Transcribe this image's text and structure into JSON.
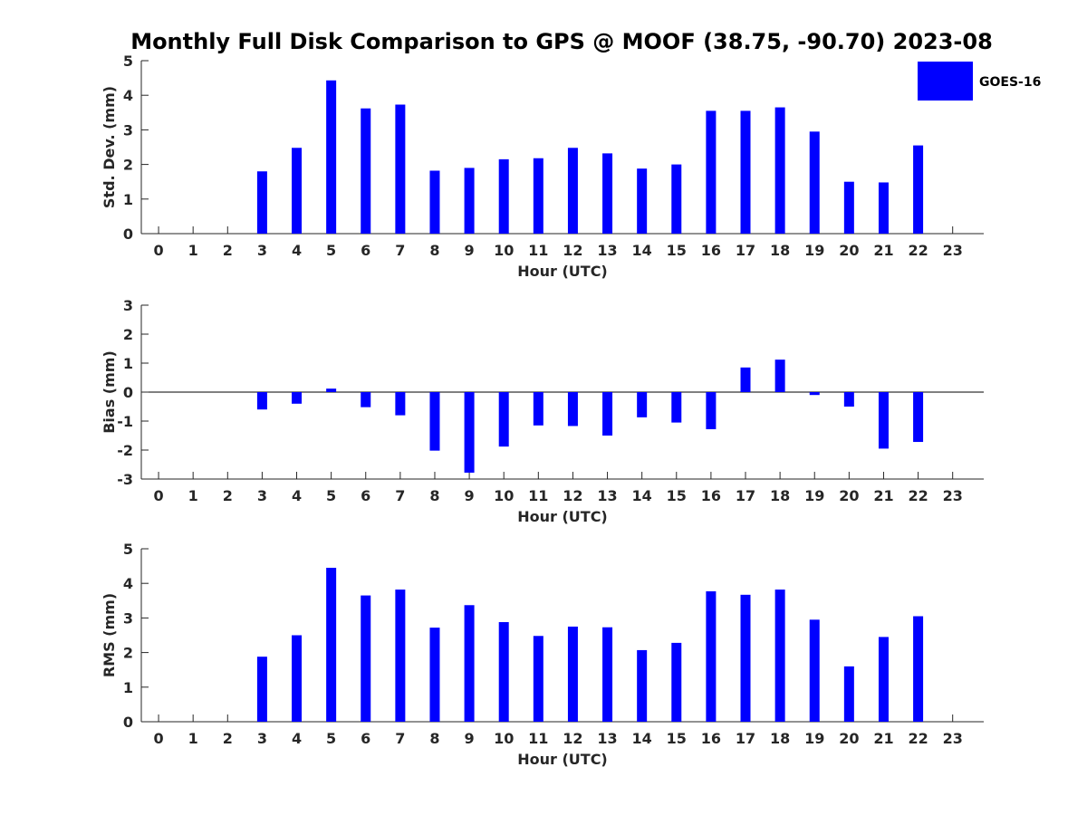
{
  "title": "Monthly Full Disk Comparison to GPS @ MOOF (38.75, -90.70) 2023-08",
  "legend": {
    "label": "GOES-16",
    "color": "#0000ff",
    "placement": "top-right"
  },
  "colors": {
    "bar": "#0000ff",
    "axis": "#262626"
  },
  "chart_data": [
    {
      "type": "bar",
      "x": [
        0,
        1,
        2,
        3,
        4,
        5,
        6,
        7,
        8,
        9,
        10,
        11,
        12,
        13,
        14,
        15,
        16,
        17,
        18,
        19,
        20,
        21,
        22,
        23
      ],
      "xlabel": "Hour (UTC)",
      "ylabel": "Std. Dev. (mm)",
      "ylim": [
        0,
        5
      ],
      "yticks": [
        0,
        1,
        2,
        3,
        4,
        5
      ],
      "grid": false,
      "series": [
        {
          "name": "GOES-16",
          "values": [
            null,
            null,
            null,
            1.8,
            2.48,
            4.43,
            3.62,
            3.73,
            1.82,
            1.9,
            2.15,
            2.18,
            2.48,
            2.32,
            1.88,
            2.0,
            3.55,
            3.55,
            3.65,
            2.95,
            1.5,
            1.48,
            2.55,
            null
          ]
        }
      ]
    },
    {
      "type": "bar",
      "x": [
        0,
        1,
        2,
        3,
        4,
        5,
        6,
        7,
        8,
        9,
        10,
        11,
        12,
        13,
        14,
        15,
        16,
        17,
        18,
        19,
        20,
        21,
        22,
        23
      ],
      "xlabel": "Hour (UTC)",
      "ylabel": "Bias (mm)",
      "ylim": [
        -3,
        3
      ],
      "yticks": [
        -3,
        -2,
        -1,
        0,
        1,
        2,
        3
      ],
      "grid": false,
      "series": [
        {
          "name": "GOES-16",
          "values": [
            null,
            null,
            null,
            -0.6,
            -0.4,
            0.12,
            -0.52,
            -0.8,
            -2.02,
            -2.78,
            -1.88,
            -1.15,
            -1.17,
            -1.5,
            -0.87,
            -1.05,
            -1.28,
            0.85,
            1.12,
            -0.1,
            -0.5,
            -1.95,
            -1.72,
            null
          ]
        }
      ]
    },
    {
      "type": "bar",
      "x": [
        0,
        1,
        2,
        3,
        4,
        5,
        6,
        7,
        8,
        9,
        10,
        11,
        12,
        13,
        14,
        15,
        16,
        17,
        18,
        19,
        20,
        21,
        22,
        23
      ],
      "xlabel": "Hour (UTC)",
      "ylabel": "RMS (mm)",
      "ylim": [
        0,
        5
      ],
      "yticks": [
        0,
        1,
        2,
        3,
        4,
        5
      ],
      "grid": false,
      "series": [
        {
          "name": "GOES-16",
          "values": [
            null,
            null,
            null,
            1.88,
            2.5,
            4.45,
            3.65,
            3.82,
            2.72,
            3.37,
            2.88,
            2.48,
            2.75,
            2.73,
            2.07,
            2.28,
            3.77,
            3.67,
            3.82,
            2.95,
            1.6,
            2.45,
            3.05,
            null
          ]
        }
      ]
    }
  ]
}
